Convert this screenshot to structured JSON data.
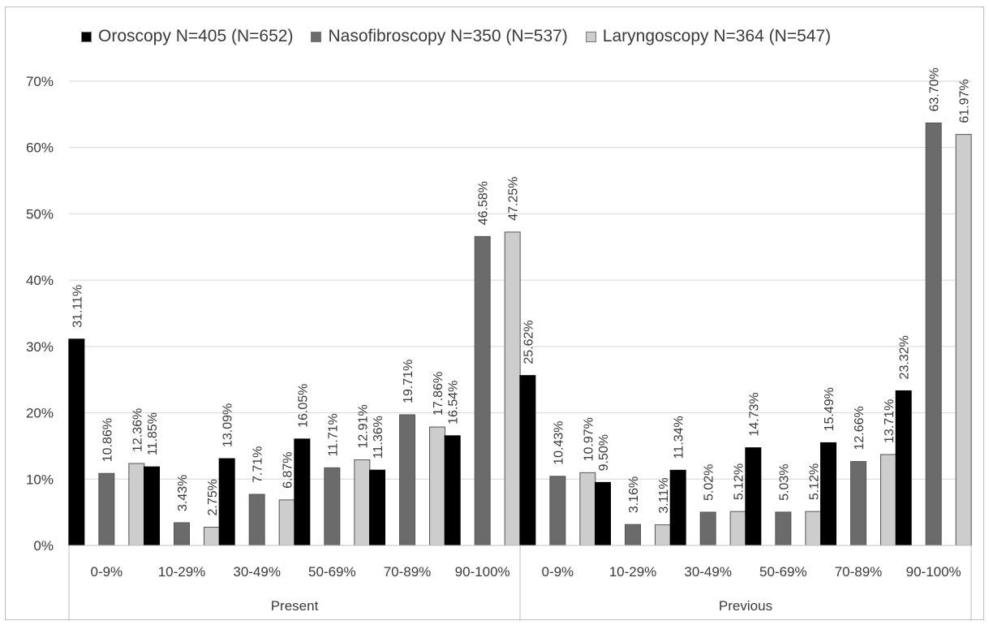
{
  "chart_data": {
    "type": "bar",
    "ylim": [
      0,
      70
    ],
    "yticks": [
      "0%",
      "10%",
      "20%",
      "30%",
      "40%",
      "50%",
      "60%",
      "70%"
    ],
    "ytick_values": [
      0,
      10,
      20,
      30,
      40,
      50,
      60,
      70
    ],
    "grid": true,
    "legend_position": "top",
    "groups": [
      "Present",
      "Previous"
    ],
    "categories": [
      "0-9%",
      "10-29%",
      "30-49%",
      "50-69%",
      "70-89%",
      "90-100%"
    ],
    "series": [
      {
        "name": "Oroscopy N=405 (N=652)",
        "color": "#000000",
        "values": {
          "Present": [
            31.11,
            11.85,
            13.09,
            16.05,
            11.36,
            16.54
          ],
          "Previous": [
            25.62,
            9.5,
            11.34,
            14.73,
            15.49,
            23.32
          ]
        },
        "labels": {
          "Present": [
            "31.11%",
            "11.85%",
            "13.09%",
            "16.05%",
            "11.36%",
            "16.54%"
          ],
          "Previous": [
            "25.62%",
            "9.50%",
            "11.34%",
            "14.73%",
            "15.49%",
            "23.32%"
          ]
        }
      },
      {
        "name": "Nasofibroscopy N=350 (N=537)",
        "color": "#6b6b6b",
        "values": {
          "Present": [
            10.86,
            3.43,
            7.71,
            11.71,
            19.71,
            46.58
          ],
          "Previous": [
            10.43,
            3.16,
            5.02,
            5.03,
            12.66,
            63.7
          ]
        },
        "labels": {
          "Present": [
            "10.86%",
            "3.43%",
            "7.71%",
            "11.71%",
            "19.71%",
            "46.58%"
          ],
          "Previous": [
            "10.43%",
            "3.16%",
            "5.02%",
            "5.03%",
            "12.66%",
            "63.70%"
          ]
        }
      },
      {
        "name": "Laryngoscopy N=364 (N=547)",
        "color": "#cdcdcd",
        "values": {
          "Present": [
            12.36,
            2.75,
            6.87,
            12.91,
            17.86,
            47.25
          ],
          "Previous": [
            10.97,
            3.11,
            5.12,
            5.12,
            13.71,
            61.97
          ]
        },
        "labels": {
          "Present": [
            "12.36%",
            "2.75%",
            "6.87%",
            "12.91%",
            "17.86%",
            "47.25%"
          ],
          "Previous": [
            "10.97%",
            "3.11%",
            "5.12%",
            "5.12%",
            "13.71%",
            "61.97%"
          ]
        }
      }
    ]
  }
}
